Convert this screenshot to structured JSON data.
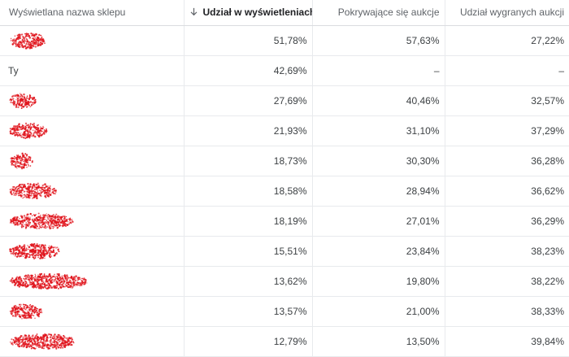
{
  "columns": [
    {
      "label": "Wyświetlana nazwa sklepu"
    },
    {
      "label": "Udział w wyświetleniach",
      "sort_icon": "arrow-down-icon",
      "sort": "descending"
    },
    {
      "label": "Pokrywające się aukcje"
    },
    {
      "label": "Udział wygranych aukcji"
    }
  ],
  "colors": {
    "redaction": "#e0141c",
    "header_text": "#5f6368",
    "sorted_header_text": "#202124"
  },
  "rows": [
    {
      "name": "",
      "redacted": true,
      "share": "51,78%",
      "overlap": "57,63%",
      "outranking": "27,22%"
    },
    {
      "name": "Ty",
      "redacted": false,
      "share": "42,69%",
      "overlap": "–",
      "outranking": "–"
    },
    {
      "name": "",
      "redacted": true,
      "share": "27,69%",
      "overlap": "40,46%",
      "outranking": "32,57%"
    },
    {
      "name": "",
      "redacted": true,
      "share": "21,93%",
      "overlap": "31,10%",
      "outranking": "37,29%"
    },
    {
      "name": "",
      "redacted": true,
      "share": "18,73%",
      "overlap": "30,30%",
      "outranking": "36,28%"
    },
    {
      "name": "",
      "redacted": true,
      "share": "18,58%",
      "overlap": "28,94%",
      "outranking": "36,62%"
    },
    {
      "name": "",
      "redacted": true,
      "share": "18,19%",
      "overlap": "27,01%",
      "outranking": "36,29%"
    },
    {
      "name": "",
      "redacted": true,
      "share": "15,51%",
      "overlap": "23,84%",
      "outranking": "38,23%"
    },
    {
      "name": "",
      "redacted": true,
      "share": "13,62%",
      "overlap": "19,80%",
      "outranking": "38,22%"
    },
    {
      "name": "",
      "redacted": true,
      "share": "13,57%",
      "overlap": "21,00%",
      "outranking": "38,33%"
    },
    {
      "name": "",
      "redacted": true,
      "share": "12,79%",
      "overlap": "13,50%",
      "outranking": "39,84%"
    }
  ]
}
